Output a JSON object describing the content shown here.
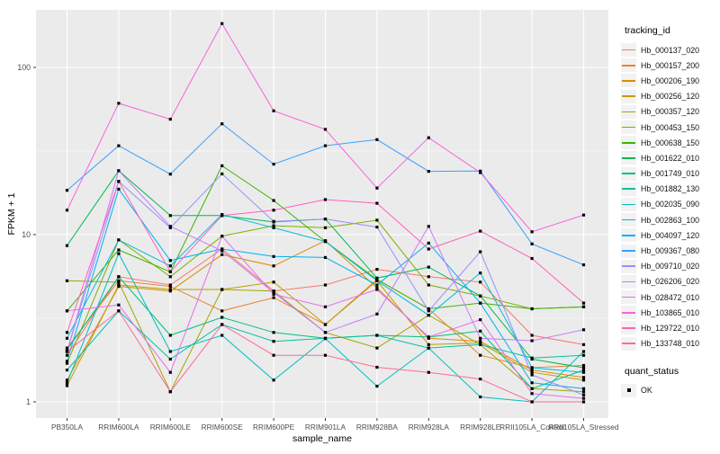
{
  "chart_data": {
    "type": "line",
    "title": "",
    "xlabel": "sample_name",
    "ylabel": "FPKM + 1",
    "y_scale": "log10",
    "y_ticks": [
      "1",
      "10",
      "100"
    ],
    "y_tick_values": [
      1,
      10,
      100
    ],
    "y_minor_values": [
      3.162,
      31.623
    ],
    "ylim": [
      0.8,
      220
    ],
    "grid": true,
    "panel_bg": "#EBEBEB",
    "grid_color": "#FFFFFF",
    "point_shape": "square",
    "point_color": "#000000",
    "legend_position": "right",
    "categories": [
      "PB350LA",
      "RRIM600LA",
      "RRIM600LE",
      "RRIM600SE",
      "RRIM600PE",
      "RRIM901LA",
      "RRIM928BA",
      "RRIM928LA",
      "RRIM928LE",
      "RRII105LA_Control",
      "RRII105LA_Stressed"
    ],
    "series": [
      {
        "name": "Hb_000137_020",
        "color": "#F8766D",
        "values": [
          1.9,
          5.6,
          5.0,
          8.2,
          4.6,
          5.0,
          6.2,
          5.6,
          5.2,
          2.5,
          2.2
        ]
      },
      {
        "name": "Hb_000157_200",
        "color": "#EA8331",
        "values": [
          2.1,
          5.3,
          4.9,
          3.5,
          4.2,
          2.9,
          5.4,
          3.6,
          1.9,
          1.6,
          1.65
        ]
      },
      {
        "name": "Hb_000206_190",
        "color": "#D89000",
        "values": [
          1.35,
          4.9,
          4.6,
          7.6,
          6.5,
          9.2,
          4.8,
          2.4,
          2.3,
          1.55,
          1.4
        ]
      },
      {
        "name": "Hb_000256_120",
        "color": "#C09B00",
        "values": [
          1.25,
          5.0,
          4.7,
          4.7,
          5.2,
          2.9,
          5.3,
          2.2,
          2.25,
          1.5,
          1.35
        ]
      },
      {
        "name": "Hb_000357_120",
        "color": "#A3A500",
        "values": [
          5.3,
          5.2,
          1.15,
          4.7,
          4.6,
          2.6,
          2.1,
          3.3,
          2.2,
          1.2,
          1.15
        ]
      },
      {
        "name": "Hb_000453_150",
        "color": "#7CAE00",
        "values": [
          1.7,
          9.3,
          5.6,
          9.8,
          11.3,
          11.0,
          12.2,
          5.0,
          4.3,
          3.6,
          3.7
        ]
      },
      {
        "name": "Hb_000638_150",
        "color": "#39B600",
        "values": [
          3.5,
          8.1,
          6.0,
          25.8,
          16.0,
          9.1,
          5.4,
          3.6,
          3.9,
          3.6,
          3.7
        ]
      },
      {
        "name": "Hb_001622_010",
        "color": "#00BB4E",
        "values": [
          8.6,
          24.1,
          13.0,
          13.0,
          11.9,
          12.4,
          5.5,
          6.4,
          4.3,
          1.8,
          1.6
        ]
      },
      {
        "name": "Hb_001749_010",
        "color": "#00BF7D",
        "values": [
          2.05,
          5.6,
          2.5,
          3.2,
          2.6,
          2.4,
          2.5,
          2.44,
          2.65,
          1.2,
          1.55
        ]
      },
      {
        "name": "Hb_001882_130",
        "color": "#00C1A3",
        "values": [
          1.55,
          3.5,
          1.8,
          2.9,
          2.3,
          2.4,
          2.5,
          2.1,
          2.2,
          1.83,
          1.9
        ]
      },
      {
        "name": "Hb_002035_090",
        "color": "#00BFC4",
        "values": [
          1.3,
          7.7,
          2.0,
          2.5,
          1.35,
          2.39,
          1.24,
          2.1,
          1.07,
          1.0,
          2.0
        ]
      },
      {
        "name": "Hb_002863_100",
        "color": "#00BBDA",
        "values": [
          2.4,
          9.3,
          6.5,
          13.2,
          11.0,
          9.1,
          5.3,
          3.3,
          5.9,
          1.6,
          1.5
        ]
      },
      {
        "name": "Hb_004097_120",
        "color": "#00B0F6",
        "values": [
          1.75,
          18.7,
          7.0,
          8.2,
          7.4,
          7.3,
          5.0,
          8.9,
          3.9,
          1.3,
          1.2
        ]
      },
      {
        "name": "Hb_009367_080",
        "color": "#35A2FF",
        "values": [
          18.4,
          34.0,
          23.0,
          46.0,
          26.4,
          34.0,
          37.0,
          23.9,
          24.0,
          8.8,
          6.6
        ]
      },
      {
        "name": "Hb_009710_020",
        "color": "#9590FF",
        "values": [
          2.0,
          20.8,
          11.0,
          23.1,
          12.0,
          12.4,
          11.1,
          3.5,
          7.9,
          1.45,
          1.1
        ]
      },
      {
        "name": "Hb_026206_020",
        "color": "#C77CFF",
        "values": [
          2.0,
          24.1,
          11.2,
          8.0,
          4.5,
          2.6,
          3.35,
          11.2,
          2.4,
          2.32,
          2.7
        ]
      },
      {
        "name": "Hb_028472_010",
        "color": "#E76BF3",
        "values": [
          3.5,
          3.8,
          1.5,
          9.8,
          4.4,
          3.7,
          4.7,
          2.44,
          3.1,
          1.12,
          1.05
        ]
      },
      {
        "name": "Hb_103865_010",
        "color": "#FA62DB",
        "values": [
          14.0,
          61.0,
          49.0,
          183.0,
          55.0,
          42.6,
          19.0,
          38.0,
          23.5,
          10.4,
          13.1
        ]
      },
      {
        "name": "Hb_129722_010",
        "color": "#FF62BC",
        "values": [
          2.6,
          20.8,
          6.0,
          13.0,
          14.0,
          16.2,
          15.4,
          8.2,
          10.5,
          7.2,
          3.9
        ]
      },
      {
        "name": "Hb_133748_010",
        "color": "#FF6A98",
        "values": [
          2.0,
          3.5,
          1.15,
          2.9,
          1.9,
          1.9,
          1.61,
          1.5,
          1.37,
          1.0,
          1.0
        ]
      }
    ],
    "legend": {
      "color_title": "tracking_id",
      "shape_title": "quant_status",
      "shape_items": [
        {
          "label": "OK"
        }
      ]
    }
  }
}
